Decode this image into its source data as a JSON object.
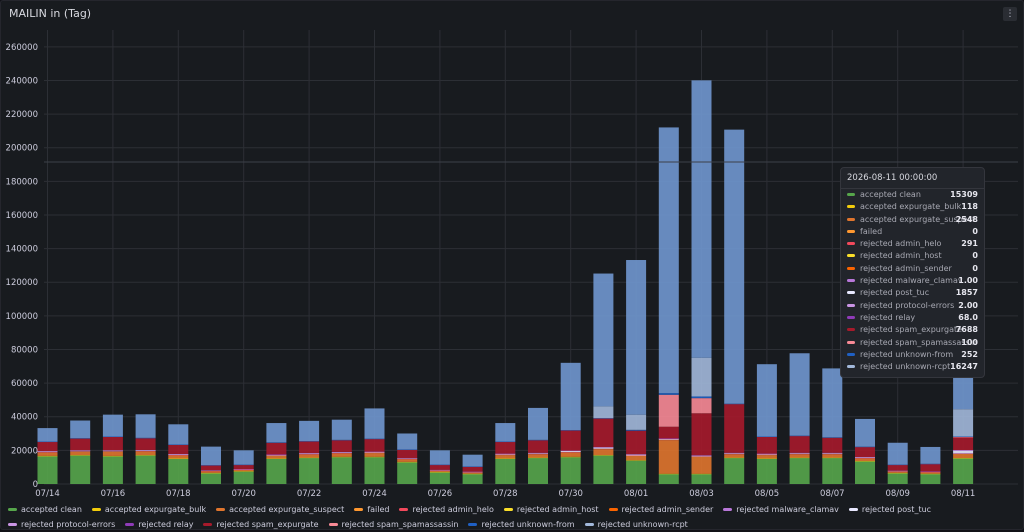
{
  "panel": {
    "title": "MAILIN in (Tag)",
    "menu_icon": "menu-icon"
  },
  "chart_data": {
    "type": "bar",
    "stacked": true,
    "grid": true,
    "legend_placement": "bottom",
    "ylim": [
      0,
      270000
    ],
    "yticks": [
      "0",
      "20000",
      "40000",
      "60000",
      "80000",
      "100000",
      "120000",
      "140000",
      "160000",
      "180000",
      "200000",
      "220000",
      "240000",
      "260000"
    ],
    "xtick_labels": [
      "07/14",
      "07/16",
      "07/18",
      "07/20",
      "07/22",
      "07/24",
      "07/26",
      "07/28",
      "07/30",
      "08/01",
      "08/03",
      "08/05",
      "08/07",
      "08/09",
      "08/11"
    ],
    "categories": [
      "07/14",
      "07/15",
      "07/16",
      "07/17",
      "07/18",
      "07/19",
      "07/20",
      "07/21",
      "07/22",
      "07/23",
      "07/24",
      "07/25",
      "07/26",
      "07/27",
      "07/28",
      "07/29",
      "07/30",
      "07/31",
      "08/01",
      "08/02",
      "08/03",
      "08/04",
      "08/05",
      "08/06",
      "08/07",
      "08/08",
      "08/09",
      "08/10",
      "08/11"
    ],
    "series": [
      {
        "name": "accepted clean",
        "color": "#56a64b",
        "values": [
          16500,
          17000,
          16500,
          17000,
          15000,
          6500,
          7500,
          15000,
          15500,
          16000,
          16000,
          13000,
          7000,
          6000,
          15000,
          15500,
          16000,
          17000,
          14000,
          6000,
          6000,
          15500,
          15000,
          15500,
          15500,
          13500,
          6500,
          6000,
          15309
        ]
      },
      {
        "name": "accepted expurgate_bulk",
        "color": "#f2cc0c",
        "values": [
          200,
          200,
          200,
          200,
          150,
          100,
          100,
          200,
          200,
          200,
          200,
          150,
          100,
          100,
          200,
          200,
          200,
          200,
          150,
          100,
          100,
          200,
          200,
          200,
          200,
          150,
          100,
          100,
          118
        ]
      },
      {
        "name": "accepted expurgate_suspect",
        "color": "#e0752d",
        "values": [
          2000,
          2000,
          2500,
          2200,
          1800,
          1000,
          800,
          1500,
          1800,
          2000,
          2200,
          1500,
          800,
          700,
          2000,
          2000,
          2500,
          3500,
          2500,
          20000,
          10000,
          2000,
          2000,
          2000,
          2000,
          1500,
          800,
          800,
          2548
        ]
      },
      {
        "name": "failed",
        "color": "#ff9830",
        "values": [
          0,
          0,
          0,
          0,
          0,
          0,
          0,
          0,
          0,
          0,
          0,
          0,
          0,
          0,
          0,
          0,
          0,
          0,
          0,
          0,
          0,
          0,
          0,
          0,
          0,
          0,
          0,
          0,
          0
        ]
      },
      {
        "name": "rejected admin_helo",
        "color": "#f2495c",
        "values": [
          300,
          300,
          300,
          300,
          300,
          200,
          200,
          300,
          300,
          300,
          300,
          250,
          200,
          200,
          300,
          300,
          300,
          300,
          300,
          300,
          300,
          300,
          300,
          300,
          300,
          300,
          200,
          200,
          291
        ]
      },
      {
        "name": "rejected admin_host",
        "color": "#fade2a",
        "values": [
          0,
          0,
          0,
          0,
          0,
          0,
          0,
          0,
          0,
          0,
          0,
          0,
          0,
          0,
          0,
          0,
          0,
          0,
          0,
          0,
          0,
          0,
          0,
          0,
          0,
          0,
          0,
          0,
          0
        ]
      },
      {
        "name": "rejected admin_sender",
        "color": "#fa6400",
        "values": [
          0,
          0,
          0,
          0,
          0,
          0,
          0,
          0,
          0,
          0,
          0,
          0,
          0,
          0,
          0,
          0,
          0,
          0,
          0,
          0,
          0,
          0,
          0,
          0,
          0,
          0,
          0,
          0,
          0
        ]
      },
      {
        "name": "rejected malware_clamav",
        "color": "#b877d9",
        "values": [
          0,
          0,
          0,
          0,
          0,
          0,
          0,
          0,
          0,
          0,
          0,
          0,
          0,
          0,
          0,
          0,
          0,
          0,
          0,
          0,
          0,
          0,
          0,
          0,
          0,
          0,
          0,
          0,
          1
        ]
      },
      {
        "name": "rejected post_tuc",
        "color": "#e8e8ff",
        "values": [
          500,
          500,
          500,
          500,
          500,
          300,
          300,
          500,
          500,
          500,
          500,
          400,
          300,
          300,
          500,
          500,
          800,
          900,
          700,
          600,
          600,
          500,
          500,
          500,
          500,
          500,
          300,
          300,
          1857
        ]
      },
      {
        "name": "rejected protocol-errors",
        "color": "#ca95e5",
        "values": [
          0,
          0,
          0,
          0,
          0,
          0,
          0,
          0,
          0,
          0,
          0,
          0,
          0,
          0,
          0,
          0,
          0,
          0,
          0,
          0,
          0,
          0,
          0,
          0,
          0,
          0,
          0,
          0,
          2
        ]
      },
      {
        "name": "rejected relay",
        "color": "#8f3bb8",
        "values": [
          50,
          50,
          50,
          50,
          50,
          30,
          30,
          50,
          50,
          50,
          50,
          40,
          30,
          30,
          50,
          50,
          60,
          60,
          60,
          60,
          60,
          50,
          50,
          50,
          50,
          50,
          30,
          30,
          68
        ]
      },
      {
        "name": "rejected spam_expurgate",
        "color": "#a61a2b",
        "values": [
          5500,
          7000,
          8000,
          7000,
          5500,
          3000,
          2500,
          7000,
          7000,
          7000,
          7500,
          5000,
          3000,
          3000,
          7000,
          7500,
          12000,
          17000,
          14000,
          7000,
          25000,
          29000,
          10000,
          10000,
          9000,
          6000,
          3500,
          4500,
          7688
        ]
      },
      {
        "name": "rejected spam_spamassassin",
        "color": "#f88a96",
        "values": [
          0,
          0,
          0,
          0,
          0,
          0,
          0,
          0,
          0,
          0,
          0,
          0,
          0,
          0,
          0,
          0,
          0,
          0,
          0,
          19000,
          9000,
          0,
          0,
          0,
          0,
          0,
          0,
          0,
          100
        ]
      },
      {
        "name": "rejected unknown-from",
        "color": "#1f60c4",
        "values": [
          200,
          200,
          200,
          200,
          200,
          100,
          100,
          200,
          200,
          200,
          200,
          200,
          100,
          100,
          200,
          200,
          200,
          200,
          500,
          1000,
          1000,
          200,
          200,
          200,
          200,
          200,
          100,
          100,
          252
        ]
      },
      {
        "name": "rejected unknown-rcpt",
        "color": "#a2b8da",
        "values": [
          0,
          0,
          0,
          0,
          0,
          0,
          0,
          0,
          0,
          0,
          0,
          0,
          0,
          0,
          0,
          0,
          0,
          7000,
          9000,
          0,
          23000,
          0,
          0,
          0,
          0,
          0,
          0,
          0,
          16247
        ]
      },
      {
        "name": "",
        "color": "#7097cf",
        "values": [
          8000,
          10500,
          13000,
          14000,
          12000,
          11000,
          8500,
          11500,
          12000,
          12000,
          18000,
          9500,
          8500,
          7000,
          11000,
          19000,
          40000,
          79000,
          92000,
          158000,
          165000,
          163000,
          43000,
          49000,
          41000,
          16500,
          13000,
          10000,
          133000
        ]
      }
    ]
  },
  "tooltip": {
    "title": "2026-08-11 00:00:00",
    "rows": [
      {
        "label": "accepted clean",
        "value": "15309",
        "color": "#56a64b"
      },
      {
        "label": "accepted expurgate_bulk",
        "value": "118",
        "color": "#f2cc0c"
      },
      {
        "label": "accepted expurgate_suspect",
        "value": "2548",
        "color": "#e0752d"
      },
      {
        "label": "failed",
        "value": "0",
        "color": "#ff9830"
      },
      {
        "label": "rejected admin_helo",
        "value": "291",
        "color": "#f2495c"
      },
      {
        "label": "rejected admin_host",
        "value": "0",
        "color": "#fade2a"
      },
      {
        "label": "rejected admin_sender",
        "value": "0",
        "color": "#fa6400"
      },
      {
        "label": "rejected malware_clamav",
        "value": "1.00",
        "color": "#b877d9"
      },
      {
        "label": "rejected post_tuc",
        "value": "1857",
        "color": "#e8e8ff"
      },
      {
        "label": "rejected protocol-errors",
        "value": "2.00",
        "color": "#ca95e5"
      },
      {
        "label": "rejected relay",
        "value": "68.0",
        "color": "#8f3bb8"
      },
      {
        "label": "rejected spam_expurgate",
        "value": "7688",
        "color": "#a61a2b"
      },
      {
        "label": "rejected spam_spamassassin",
        "value": "100",
        "color": "#f88a96"
      },
      {
        "label": "rejected unknown-from",
        "value": "252",
        "color": "#1f60c4"
      },
      {
        "label": "rejected unknown-rcpt",
        "value": "16247",
        "color": "#a2b8da"
      }
    ]
  },
  "legend": [
    {
      "label": "accepted clean",
      "color": "#56a64b"
    },
    {
      "label": "accepted expurgate_bulk",
      "color": "#f2cc0c"
    },
    {
      "label": "accepted expurgate_suspect",
      "color": "#e0752d"
    },
    {
      "label": "failed",
      "color": "#ff9830"
    },
    {
      "label": "rejected admin_helo",
      "color": "#f2495c"
    },
    {
      "label": "rejected admin_host",
      "color": "#fade2a"
    },
    {
      "label": "rejected admin_sender",
      "color": "#fa6400"
    },
    {
      "label": "rejected malware_clamav",
      "color": "#b877d9"
    },
    {
      "label": "rejected post_tuc",
      "color": "#e8e8ff"
    },
    {
      "label": "rejected protocol-errors",
      "color": "#ca95e5"
    },
    {
      "label": "rejected relay",
      "color": "#8f3bb8"
    },
    {
      "label": "rejected spam_expurgate",
      "color": "#a61a2b"
    },
    {
      "label": "rejected spam_spamassassin",
      "color": "#f88a96"
    },
    {
      "label": "rejected unknown-from",
      "color": "#1f60c4"
    },
    {
      "label": "rejected unknown-rcpt",
      "color": "#a2b8da"
    }
  ]
}
